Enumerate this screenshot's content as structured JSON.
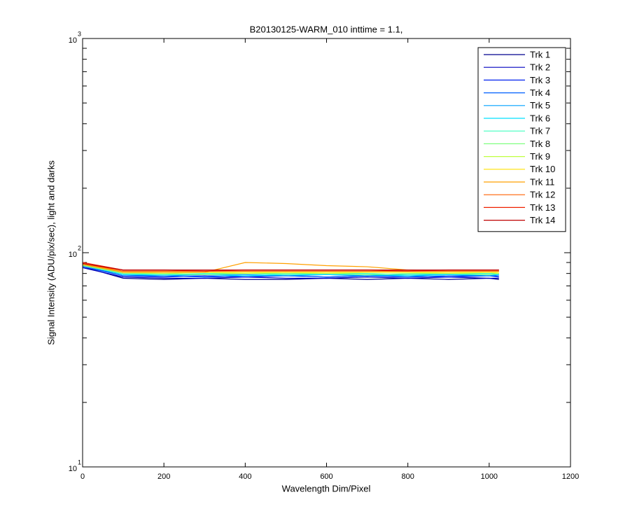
{
  "chart_data": {
    "type": "line",
    "title": "B20130125-WARM_010 inttime = 1.1,",
    "x_label": "Wavelength Dim/Pixel",
    "y_label": "Signal Intensity (ADU/pix/sec), light and darks",
    "log_y": true,
    "legend": "top-right",
    "xlim": [
      0,
      1200
    ],
    "xticks": [
      0,
      200,
      400,
      600,
      800,
      1000,
      1200
    ],
    "ylim": [
      10,
      1000
    ],
    "yticks": [
      {
        "value": 10,
        "label": "10",
        "sup": "1"
      },
      {
        "value": 100,
        "label": "10",
        "sup": "2"
      },
      {
        "value": 1000,
        "label": "10",
        "sup": "3"
      }
    ],
    "x": [
      1,
      100,
      200,
      300,
      400,
      500,
      600,
      700,
      800,
      900,
      1000,
      1024
    ],
    "series": [
      {
        "name": "Trk 1",
        "color": "#00008f",
        "values": [
          86,
          76,
          75,
          76,
          75,
          75,
          76,
          75,
          76,
          75,
          76,
          75
        ]
      },
      {
        "name": "Trk 2",
        "color": "#0000bf",
        "values": [
          85,
          77,
          76,
          76,
          77,
          76,
          76,
          77,
          76,
          77,
          76,
          76
        ]
      },
      {
        "name": "Trk 3",
        "color": "#0020ef",
        "values": [
          87,
          78,
          77,
          78,
          77,
          78,
          77,
          78,
          78,
          77,
          78,
          77
        ]
      },
      {
        "name": "Trk 4",
        "color": "#0060ff",
        "values": [
          86,
          78,
          78,
          77,
          78,
          78,
          77,
          78,
          77,
          78,
          78,
          78
        ]
      },
      {
        "name": "Trk 5",
        "color": "#00a0ff",
        "values": [
          88,
          79,
          78,
          79,
          79,
          78,
          79,
          78,
          79,
          79,
          78,
          79
        ]
      },
      {
        "name": "Trk 6",
        "color": "#00e0ff",
        "values": [
          87,
          79,
          79,
          79,
          78,
          79,
          79,
          79,
          78,
          79,
          79,
          79
        ]
      },
      {
        "name": "Trk 7",
        "color": "#40ffbf",
        "values": [
          88,
          80,
          79,
          80,
          80,
          79,
          80,
          80,
          79,
          80,
          80,
          80
        ]
      },
      {
        "name": "Trk 8",
        "color": "#80ff80",
        "values": [
          87,
          80,
          80,
          79,
          80,
          80,
          80,
          79,
          80,
          80,
          79,
          80
        ]
      },
      {
        "name": "Trk 9",
        "color": "#bfff40",
        "values": [
          88,
          81,
          80,
          81,
          80,
          81,
          80,
          81,
          81,
          80,
          81,
          80
        ]
      },
      {
        "name": "Trk 10",
        "color": "#ffe000",
        "values": [
          89,
          81,
          81,
          81,
          81,
          81,
          81,
          81,
          81,
          81,
          81,
          81
        ]
      },
      {
        "name": "Trk 11",
        "color": "#ffa000",
        "values": [
          88,
          81,
          81,
          81,
          90,
          89,
          87,
          86,
          83,
          82,
          82,
          82
        ]
      },
      {
        "name": "Trk 12",
        "color": "#ff6000",
        "values": [
          89,
          82,
          82,
          82,
          82,
          82,
          82,
          82,
          82,
          82,
          82,
          82
        ]
      },
      {
        "name": "Trk 13",
        "color": "#ef2000",
        "values": [
          90,
          83,
          83,
          82,
          83,
          83,
          83,
          83,
          82,
          83,
          83,
          83
        ]
      },
      {
        "name": "Trk 14",
        "color": "#bf0000",
        "values": [
          89,
          83,
          83,
          83,
          83,
          83,
          83,
          83,
          83,
          83,
          83,
          83
        ]
      }
    ]
  }
}
